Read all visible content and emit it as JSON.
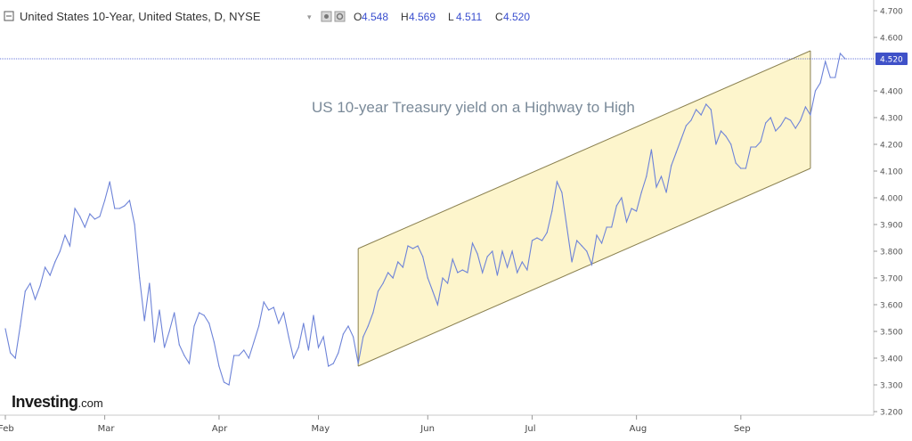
{
  "header": {
    "title": "United States 10-Year, United States, D, NYSE",
    "ohlc": [
      {
        "label": "O",
        "value": "4.548"
      },
      {
        "label": "H",
        "value": "4.569"
      },
      {
        "label": "L",
        "value": "4.511"
      },
      {
        "label": "C",
        "value": "4.520"
      }
    ]
  },
  "logo": {
    "main": "Investing",
    "sub": ".com"
  },
  "colors": {
    "line": "#6d83d8",
    "channel_fill": "#fdf5cc",
    "channel_edge": "#8a8050",
    "price_line": "#3a4fcf",
    "price_badge": "#3f51c8"
  },
  "chart_data": {
    "type": "line",
    "title": "",
    "xlabel": "",
    "ylabel": "",
    "annotation": "US 10-year Treasury yield on a Highway to High",
    "last_price": "4.520",
    "ylim": [
      3.17,
      4.74
    ],
    "y_ticks": [
      "4.700",
      "4.600",
      "4.500",
      "4.400",
      "4.300",
      "4.200",
      "4.100",
      "4.000",
      "3.900",
      "3.800",
      "3.700",
      "3.600",
      "3.500",
      "3.400",
      "3.300",
      "3.200"
    ],
    "x_ticks": [
      {
        "label": "Feb",
        "i": 0
      },
      {
        "label": "Mar",
        "i": 20
      },
      {
        "label": "Apr",
        "i": 43
      },
      {
        "label": "May",
        "i": 63
      },
      {
        "label": "Jun",
        "i": 85
      },
      {
        "label": "Jul",
        "i": 106
      },
      {
        "label": "Aug",
        "i": 127
      },
      {
        "label": "Sep",
        "i": 148
      }
    ],
    "channel": {
      "start_i": 71,
      "end_i": 162,
      "upper": [
        3.81,
        4.55
      ],
      "lower": [
        3.37,
        4.11
      ]
    },
    "series": [
      {
        "values": [
          3.51,
          3.42,
          3.4,
          3.52,
          3.65,
          3.68,
          3.62,
          3.67,
          3.74,
          3.71,
          3.76,
          3.8,
          3.86,
          3.82,
          3.96,
          3.93,
          3.89,
          3.94,
          3.92,
          3.93,
          3.99,
          4.06,
          3.96,
          3.96,
          3.97,
          3.99,
          3.9,
          3.7,
          3.54,
          3.68,
          3.46,
          3.58,
          3.44,
          3.5,
          3.57,
          3.45,
          3.41,
          3.38,
          3.52,
          3.57,
          3.56,
          3.53,
          3.46,
          3.37,
          3.31,
          3.3,
          3.41,
          3.41,
          3.43,
          3.4,
          3.46,
          3.52,
          3.61,
          3.58,
          3.59,
          3.53,
          3.57,
          3.48,
          3.4,
          3.44,
          3.53,
          3.43,
          3.56,
          3.44,
          3.48,
          3.37,
          3.38,
          3.42,
          3.49,
          3.52,
          3.48,
          3.38,
          3.48,
          3.52,
          3.57,
          3.65,
          3.68,
          3.72,
          3.7,
          3.76,
          3.74,
          3.82,
          3.81,
          3.82,
          3.78,
          3.7,
          3.65,
          3.6,
          3.7,
          3.68,
          3.77,
          3.72,
          3.73,
          3.72,
          3.83,
          3.79,
          3.72,
          3.78,
          3.8,
          3.71,
          3.8,
          3.74,
          3.8,
          3.72,
          3.76,
          3.73,
          3.84,
          3.85,
          3.84,
          3.87,
          3.95,
          4.06,
          4.02,
          3.89,
          3.76,
          3.84,
          3.82,
          3.8,
          3.75,
          3.86,
          3.83,
          3.89,
          3.89,
          3.97,
          4.0,
          3.91,
          3.96,
          3.95,
          4.02,
          4.08,
          4.18,
          4.04,
          4.08,
          4.02,
          4.12,
          4.17,
          4.22,
          4.27,
          4.29,
          4.33,
          4.31,
          4.35,
          4.33,
          4.2,
          4.25,
          4.23,
          4.2,
          4.13,
          4.11,
          4.11,
          4.19,
          4.19,
          4.21,
          4.28,
          4.3,
          4.25,
          4.27,
          4.3,
          4.29,
          4.26,
          4.29,
          4.34,
          4.31,
          4.4,
          4.43,
          4.51,
          4.45,
          4.45,
          4.54,
          4.52
        ]
      }
    ]
  }
}
